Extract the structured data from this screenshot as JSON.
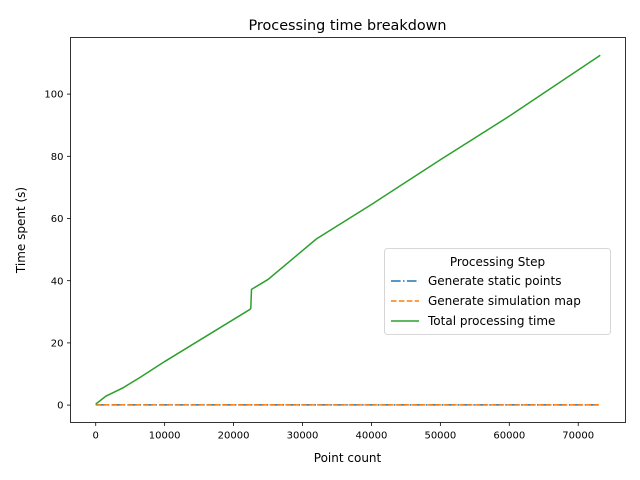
{
  "chart_data": {
    "type": "line",
    "title": "Processing time breakdown",
    "xlabel": "Point count",
    "ylabel": "Time spent (s)",
    "xlim": [
      -3660,
      76860
    ],
    "ylim": [
      -5.6,
      118.2
    ],
    "xticks": [
      0,
      10000,
      20000,
      30000,
      40000,
      50000,
      60000,
      70000
    ],
    "yticks": [
      0,
      20,
      40,
      60,
      80,
      100
    ],
    "grid": false,
    "legend": {
      "title": "Processing Step",
      "placement": "center-right"
    },
    "series": [
      {
        "name": "Generate static points",
        "color": "#1f77b4",
        "style": "dashdot",
        "x": [
          0,
          73200
        ],
        "y": [
          0.05,
          0.05
        ]
      },
      {
        "name": "Generate simulation map",
        "color": "#ff7f0e",
        "style": "dashed",
        "x": [
          0,
          73200
        ],
        "y": [
          0.05,
          0.05
        ]
      },
      {
        "name": "Total processing time",
        "color": "#2ca02c",
        "style": "solid",
        "x": [
          0,
          1500,
          4000,
          6500,
          10000,
          22400,
          22500,
          22600,
          25000,
          32000,
          40000,
          50000,
          60000,
          73200
        ],
        "y": [
          0.3,
          2.9,
          5.6,
          9.0,
          14.0,
          30.8,
          31.2,
          37.2,
          40.4,
          53.4,
          64.5,
          78.9,
          92.9,
          112.5
        ]
      }
    ]
  }
}
